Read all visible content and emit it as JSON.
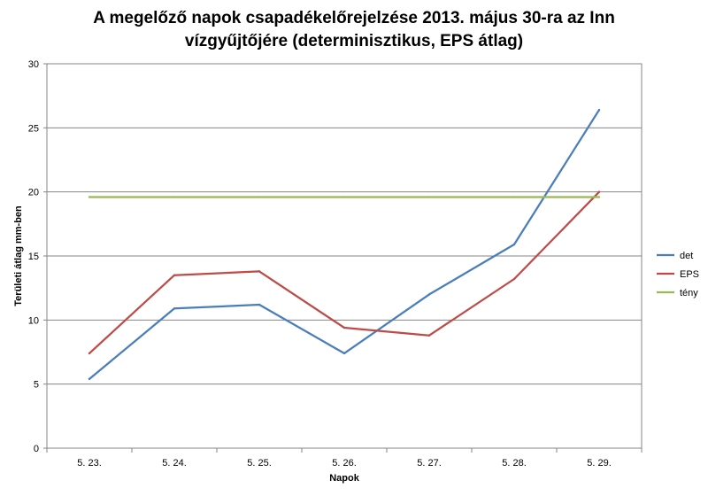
{
  "chart_data": {
    "type": "line",
    "title_lines": [
      "A megelőző napok csapadékelőrejelzése 2013. május 30-ra az Inn",
      "vízgyűjtőjére (determinisztikus, EPS átlag)"
    ],
    "xlabel": "Napok",
    "ylabel": "Területi átlag mm-ben",
    "categories": [
      "5. 23.",
      "5. 24.",
      "5. 25.",
      "5. 26.",
      "5. 27.",
      "5. 28.",
      "5. 29."
    ],
    "ylim": [
      0,
      30
    ],
    "yticks": [
      0,
      5,
      10,
      15,
      20,
      25,
      30
    ],
    "grid": true,
    "legend_position": "right",
    "series": [
      {
        "name": "det",
        "color": "#4a7ebb",
        "values": [
          5.4,
          10.9,
          11.2,
          7.4,
          12.0,
          15.9,
          26.4
        ]
      },
      {
        "name": "EPS",
        "color": "#be4b48",
        "values": [
          7.4,
          13.5,
          13.8,
          9.4,
          8.8,
          13.2,
          20.0
        ]
      },
      {
        "name": "tény",
        "color": "#98b954",
        "values": [
          19.6,
          19.6,
          19.6,
          19.6,
          19.6,
          19.6,
          19.6
        ]
      }
    ]
  }
}
